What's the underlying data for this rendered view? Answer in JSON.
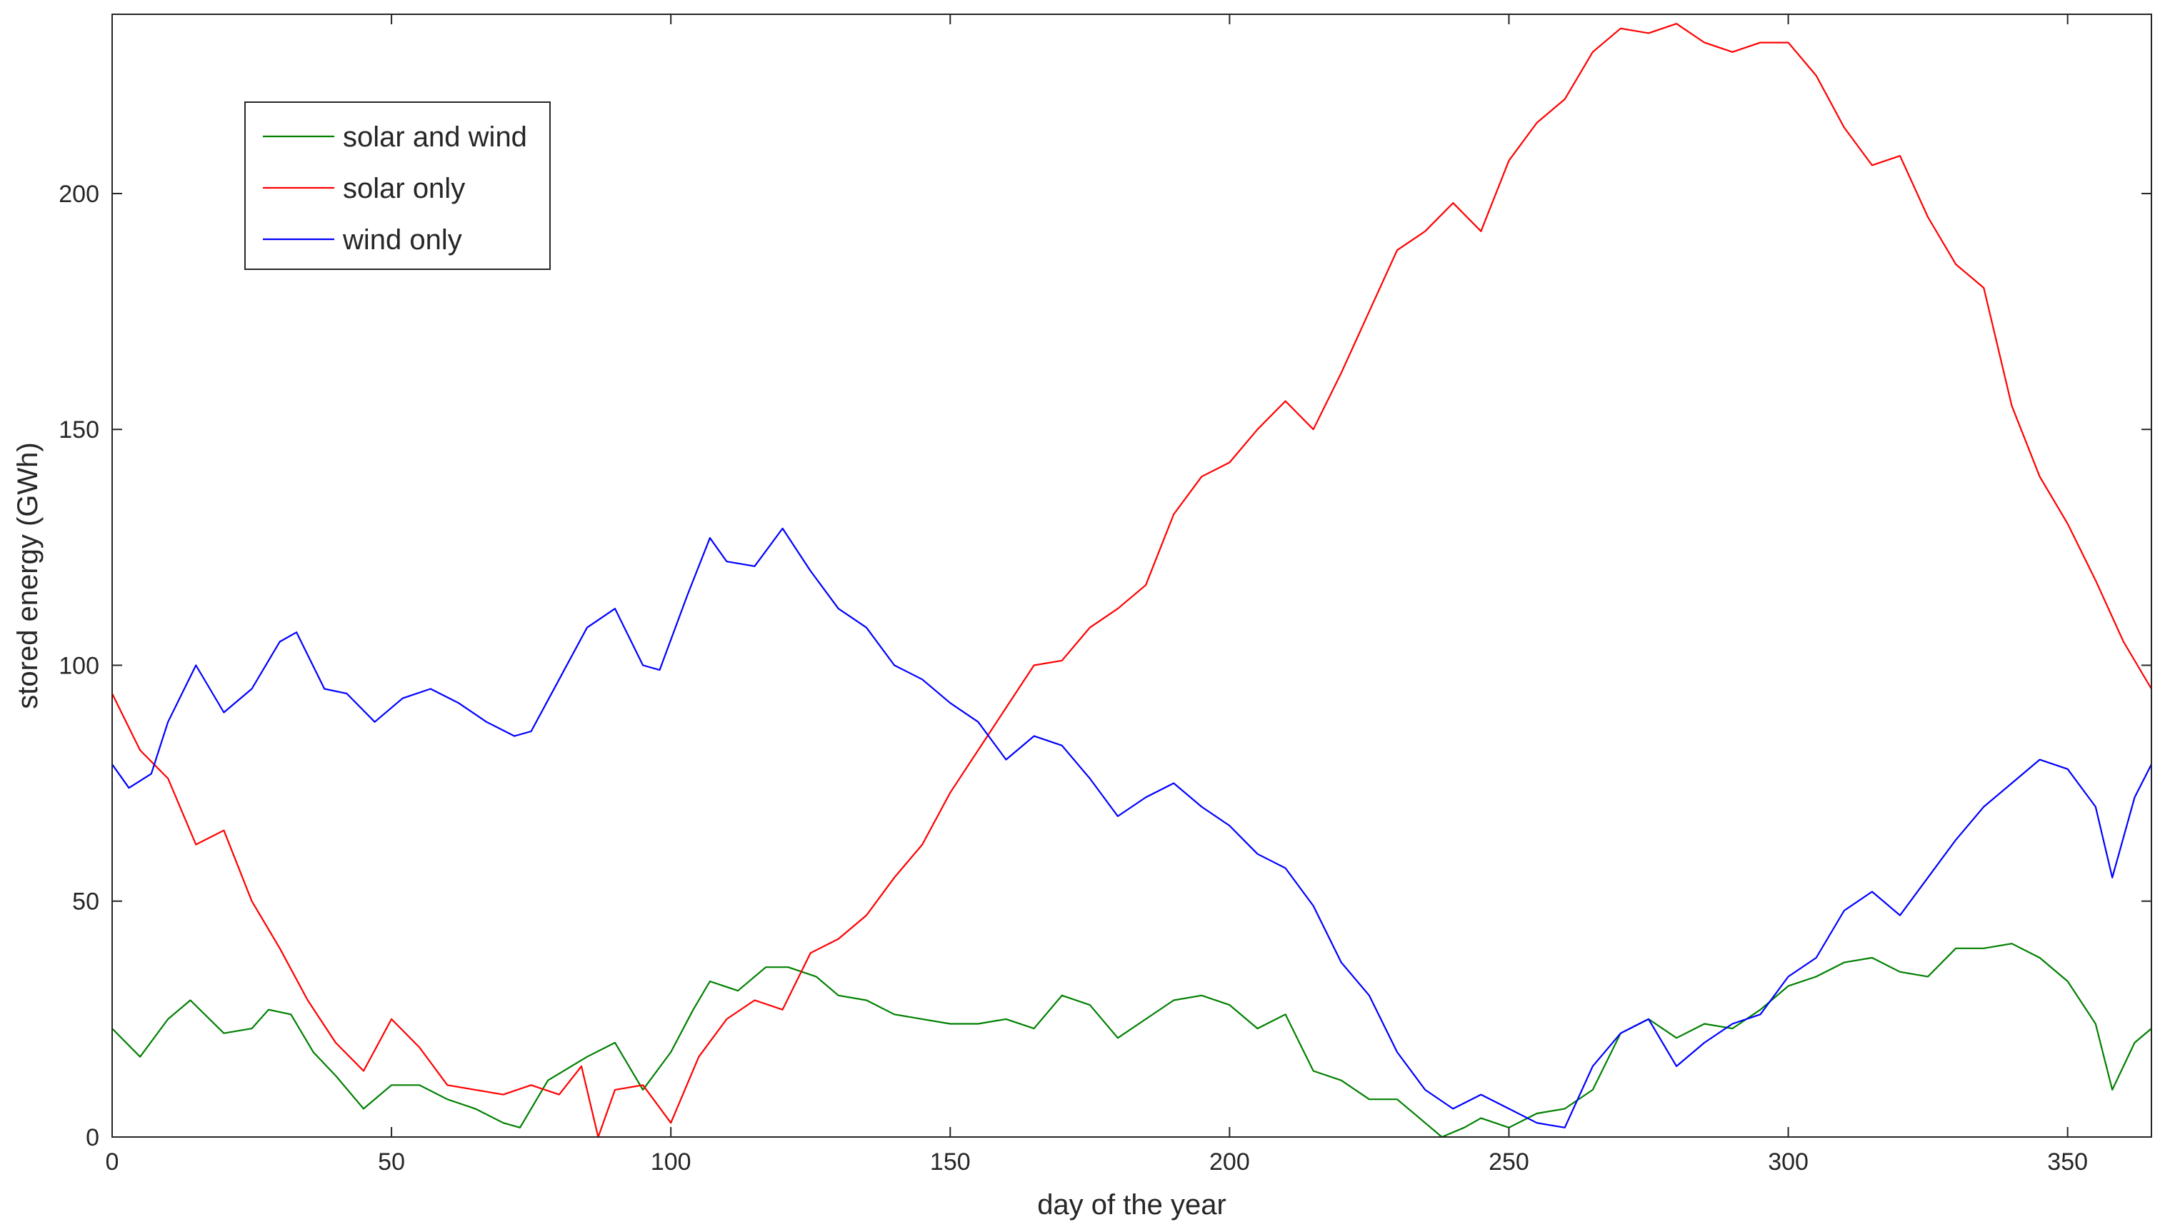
{
  "chart_data": {
    "type": "line",
    "title": "",
    "xlabel": "day of the year",
    "ylabel": "stored energy (GWh)",
    "xlim": [
      0,
      365
    ],
    "ylim": [
      0,
      238
    ],
    "xticks": [
      0,
      50,
      100,
      150,
      200,
      250,
      300,
      350
    ],
    "yticks": [
      0,
      50,
      100,
      150,
      200
    ],
    "grid": false,
    "legend_position": "top-left",
    "series": [
      {
        "name": "solar and wind",
        "color": "#008000",
        "x": [
          0,
          5,
          10,
          14,
          20,
          25,
          28,
          32,
          36,
          40,
          45,
          50,
          55,
          60,
          65,
          70,
          73,
          78,
          85,
          90,
          95,
          100,
          104,
          107,
          112,
          117,
          121,
          126,
          130,
          135,
          140,
          145,
          150,
          155,
          160,
          165,
          170,
          175,
          180,
          185,
          190,
          195,
          200,
          205,
          210,
          215,
          220,
          225,
          230,
          235,
          238,
          242,
          245,
          250,
          255,
          260,
          265,
          270,
          275,
          280,
          285,
          290,
          295,
          300,
          305,
          310,
          315,
          320,
          325,
          330,
          335,
          340,
          345,
          350,
          355,
          358,
          362,
          365
        ],
        "y": [
          23,
          17,
          25,
          29,
          22,
          23,
          27,
          26,
          18,
          13,
          6,
          11,
          11,
          8,
          6,
          3,
          2,
          12,
          17,
          20,
          10,
          18,
          27,
          33,
          31,
          36,
          36,
          34,
          30,
          29,
          26,
          25,
          24,
          24,
          25,
          23,
          30,
          28,
          21,
          25,
          29,
          30,
          28,
          23,
          26,
          14,
          12,
          8,
          8,
          3,
          0,
          2,
          4,
          2,
          5,
          6,
          10,
          22,
          25,
          21,
          24,
          23,
          27,
          32,
          34,
          37,
          38,
          35,
          34,
          40,
          40,
          41,
          38,
          33,
          24,
          10,
          20,
          23
        ]
      },
      {
        "name": "solar only",
        "color": "#ff0000",
        "x": [
          0,
          5,
          10,
          15,
          20,
          25,
          30,
          35,
          40,
          45,
          50,
          55,
          60,
          65,
          70,
          75,
          80,
          84,
          87,
          90,
          95,
          100,
          105,
          110,
          115,
          120,
          125,
          130,
          135,
          140,
          145,
          150,
          155,
          160,
          165,
          170,
          175,
          180,
          185,
          190,
          195,
          200,
          205,
          210,
          215,
          220,
          225,
          230,
          235,
          240,
          245,
          250,
          255,
          260,
          265,
          270,
          275,
          280,
          285,
          290,
          295,
          300,
          305,
          310,
          315,
          320,
          325,
          330,
          335,
          340,
          345,
          350,
          355,
          360,
          365
        ],
        "y": [
          94,
          82,
          76,
          62,
          65,
          50,
          40,
          29,
          20,
          14,
          25,
          19,
          11,
          10,
          9,
          11,
          9,
          15,
          0,
          10,
          11,
          3,
          17,
          25,
          29,
          27,
          39,
          42,
          47,
          55,
          62,
          73,
          82,
          91,
          100,
          101,
          108,
          112,
          117,
          132,
          140,
          143,
          150,
          156,
          150,
          162,
          175,
          188,
          192,
          198,
          192,
          207,
          215,
          220,
          230,
          235,
          234,
          236,
          232,
          230,
          232,
          232,
          225,
          214,
          206,
          208,
          195,
          185,
          180,
          155,
          140,
          130,
          118,
          105,
          95
        ]
      },
      {
        "name": "wind only",
        "color": "#0000ff",
        "x": [
          0,
          3,
          7,
          10,
          15,
          20,
          25,
          30,
          33,
          38,
          42,
          47,
          52,
          57,
          62,
          67,
          72,
          75,
          80,
          85,
          90,
          95,
          98,
          103,
          107,
          110,
          115,
          120,
          125,
          130,
          135,
          140,
          145,
          150,
          155,
          160,
          165,
          170,
          175,
          180,
          185,
          190,
          195,
          200,
          205,
          210,
          215,
          220,
          225,
          230,
          235,
          240,
          245,
          250,
          255,
          260,
          265,
          270,
          275,
          280,
          285,
          290,
          295,
          300,
          305,
          310,
          315,
          320,
          325,
          330,
          335,
          340,
          345,
          350,
          355,
          358,
          362,
          365
        ],
        "y": [
          79,
          74,
          77,
          88,
          100,
          90,
          95,
          105,
          107,
          95,
          94,
          88,
          93,
          95,
          92,
          88,
          85,
          86,
          97,
          108,
          112,
          100,
          99,
          115,
          127,
          122,
          121,
          129,
          120,
          112,
          108,
          100,
          97,
          92,
          88,
          80,
          85,
          83,
          76,
          68,
          72,
          75,
          70,
          66,
          60,
          57,
          49,
          37,
          30,
          18,
          10,
          6,
          9,
          6,
          3,
          2,
          15,
          22,
          25,
          15,
          20,
          24,
          26,
          34,
          38,
          48,
          52,
          47,
          55,
          63,
          70,
          75,
          80,
          78,
          70,
          55,
          72,
          79
        ]
      }
    ]
  }
}
